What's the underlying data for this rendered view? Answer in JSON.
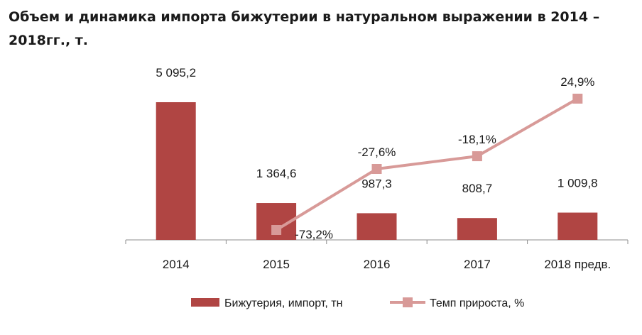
{
  "chart_data": {
    "type": "bar",
    "title": "Объем и динамика импорта бижутерии в натуральном выражении в 2014 – 2018гг., т.",
    "categories": [
      "2014",
      "2015",
      "2016",
      "2017",
      "2018 предв."
    ],
    "series": [
      {
        "name": "Бижутерия, импорт, тн",
        "type": "bar",
        "values": [
          5095.2,
          1364.6,
          987.3,
          808.7,
          1009.8
        ],
        "labels": [
          "5 095,2",
          "1 364,6",
          "987,3",
          "808,7",
          "1 009,8"
        ],
        "color": "#b04543"
      },
      {
        "name": "Темп прироста, %",
        "type": "line",
        "axis": "secondary",
        "values": [
          null,
          -73.2,
          -27.6,
          -18.1,
          24.9
        ],
        "labels": [
          "",
          "-73,2%",
          "-27,6%",
          "-18,1%",
          "24,9%"
        ],
        "color": "#d89a98"
      }
    ],
    "xlabel": "",
    "ylabel": "",
    "grid": false,
    "legend": "bottom"
  }
}
